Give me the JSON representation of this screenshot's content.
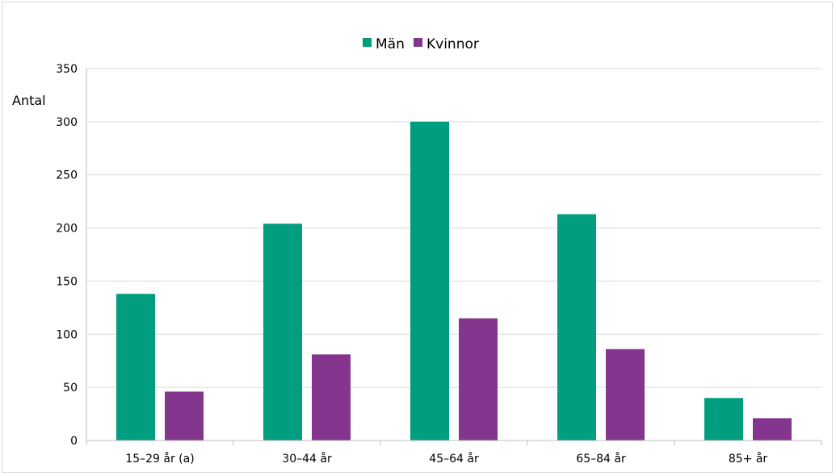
{
  "chart_data": {
    "type": "bar",
    "categories": [
      "15–29 år (a)",
      "30–44 år",
      "45–64 år",
      "65–84 år",
      "85+ år"
    ],
    "series": [
      {
        "name": "Män",
        "color": "#009e7e",
        "values": [
          138,
          204,
          300,
          213,
          40
        ]
      },
      {
        "name": "Kvinnor",
        "color": "#84358d",
        "values": [
          46,
          81,
          115,
          86,
          21
        ]
      }
    ],
    "ylabel": "Antal",
    "xlabel": "",
    "ylim": [
      0,
      350
    ],
    "yticks": [
      0,
      50,
      100,
      150,
      200,
      250,
      300,
      350
    ],
    "grid": true,
    "legend_position": "top-center"
  }
}
